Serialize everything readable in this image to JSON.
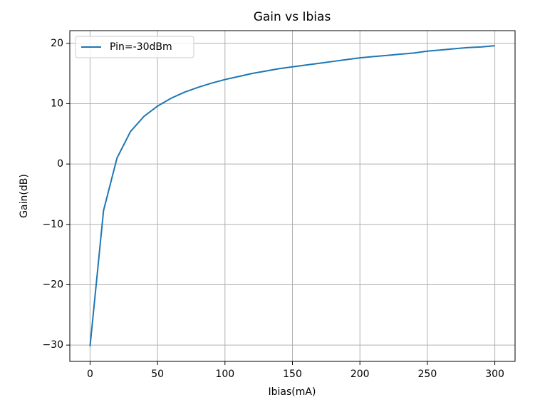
{
  "chart_data": {
    "type": "line",
    "title": "Gain vs Ibias",
    "xlabel": "Ibias(mA)",
    "ylabel": "Gain(dB)",
    "x": [
      0,
      10,
      20,
      30,
      40,
      50,
      60,
      70,
      80,
      90,
      100,
      110,
      120,
      130,
      140,
      150,
      160,
      170,
      180,
      190,
      200,
      210,
      220,
      230,
      240,
      250,
      260,
      270,
      280,
      290,
      300
    ],
    "series": [
      {
        "name": "Pin=-30dBm",
        "color": "#1f77b4",
        "values": [
          -30.2,
          -7.7,
          1.0,
          5.4,
          7.9,
          9.6,
          10.9,
          11.9,
          12.7,
          13.4,
          14.0,
          14.5,
          15.0,
          15.4,
          15.8,
          16.1,
          16.4,
          16.7,
          17.0,
          17.3,
          17.6,
          17.8,
          18.0,
          18.2,
          18.4,
          18.7,
          18.9,
          19.1,
          19.3,
          19.4,
          19.6
        ]
      }
    ],
    "xlim": [
      -15,
      315
    ],
    "ylim": [
      -32.7,
      22.1
    ],
    "xticks": [
      0,
      50,
      100,
      150,
      200,
      250,
      300
    ],
    "yticks": [
      {
        "value": -30,
        "label": "−30"
      },
      {
        "value": -20,
        "label": "−20"
      },
      {
        "value": -10,
        "label": "−10"
      },
      0,
      10,
      20
    ],
    "grid": true,
    "legend": "upper left"
  }
}
